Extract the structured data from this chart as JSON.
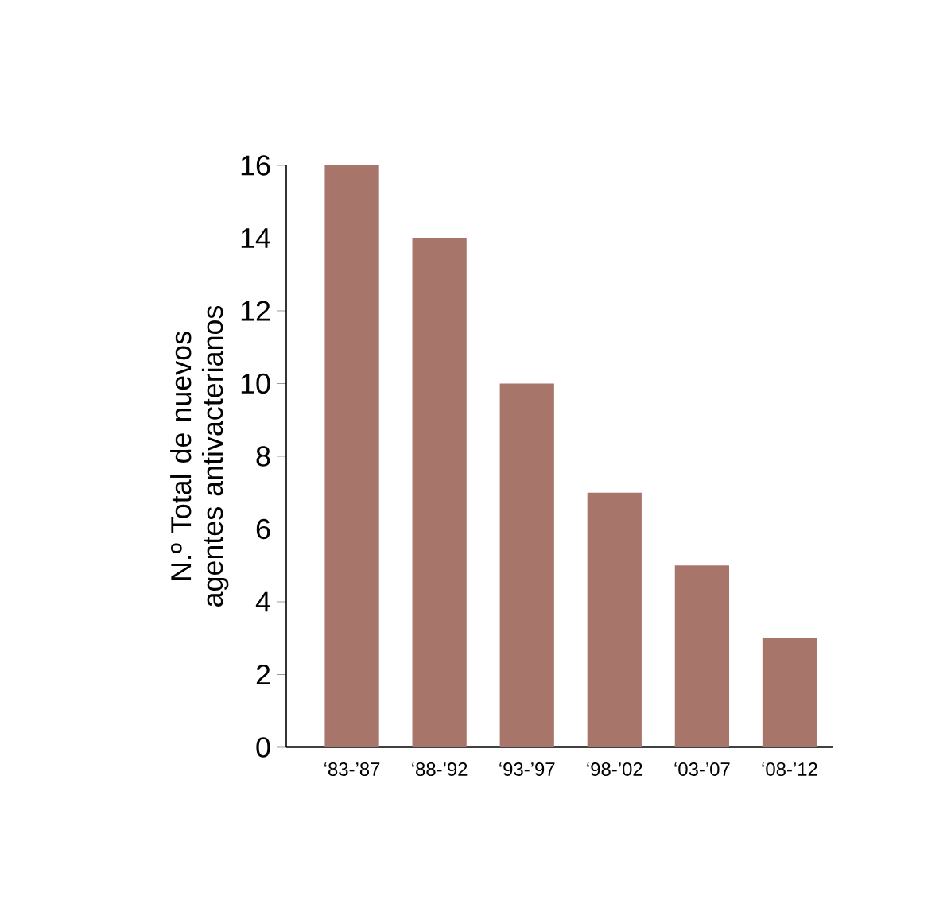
{
  "chart_data": {
    "type": "bar",
    "ylabel": "N.º Total de nuevos agentes antivacterianos",
    "categories": [
      "‘83-’87",
      "‘88-’92",
      "‘93-’97",
      "‘98-’02",
      "‘03-’07",
      "‘08-’12"
    ],
    "values": [
      16,
      14,
      10,
      7,
      5,
      3
    ],
    "color": "#a8756b",
    "ylim": [
      0,
      16
    ],
    "yticks": [
      0,
      2,
      4,
      6,
      8,
      10,
      12,
      14,
      16
    ],
    "grid": false
  }
}
